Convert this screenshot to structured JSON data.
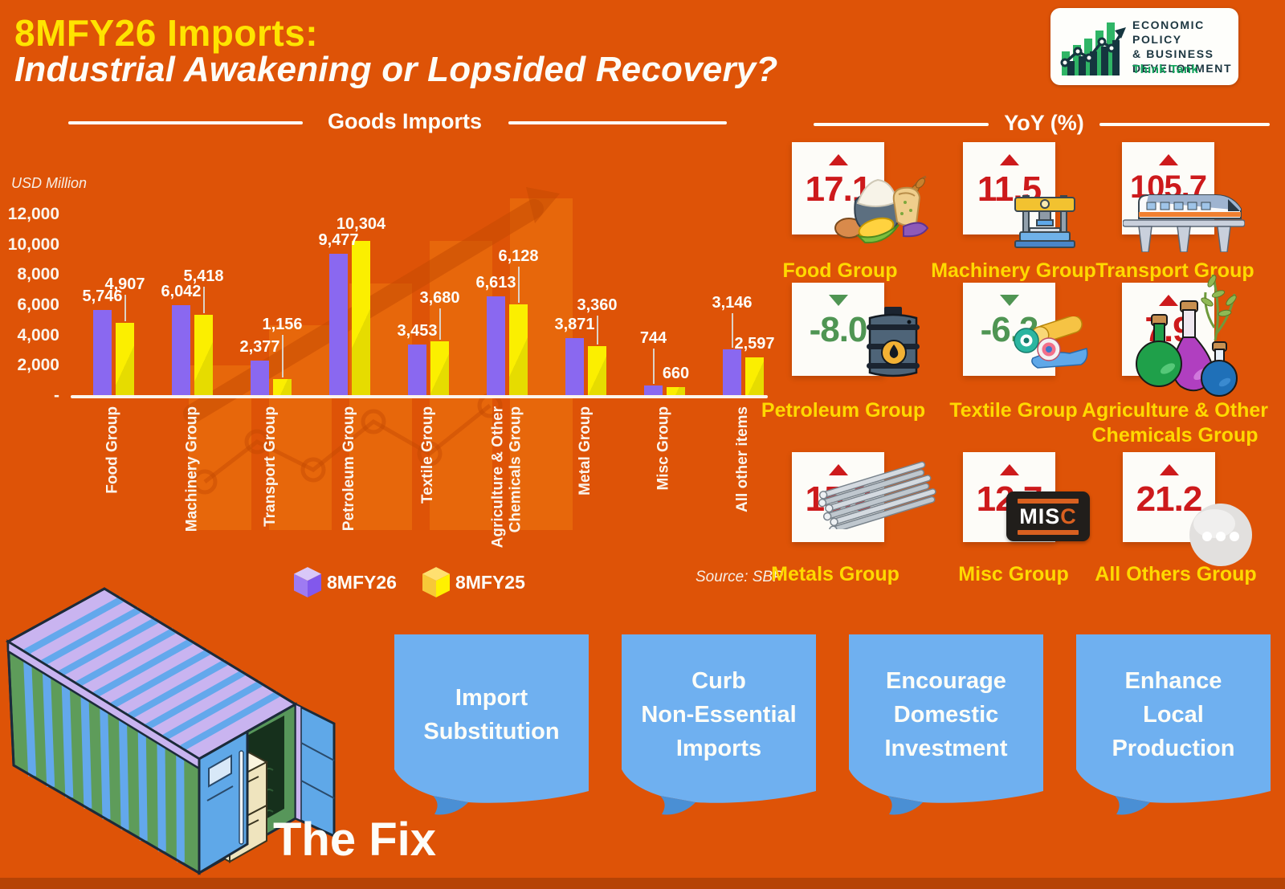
{
  "header": {
    "title_accent": "8MFY26 Imports:",
    "title_main": "Industrial Awakening or Lopsided Recovery?"
  },
  "logo": {
    "line1": "ECONOMIC POLICY",
    "line2": "& BUSINESS",
    "line3": "DEVELOPMENT",
    "tagline": "Think Tank"
  },
  "sections": {
    "chart_title": "Goods Imports",
    "yoy_title": "YoY (%)"
  },
  "chart": {
    "unit_label": "USD Million",
    "source": "Source: SBP",
    "legend": [
      {
        "label": "8MFY26",
        "color": "#8A68F0"
      },
      {
        "label": "8MFY25",
        "color": "#FBEF00"
      }
    ]
  },
  "chart_data": {
    "type": "bar",
    "title": "Goods Imports",
    "ylabel": "USD Million",
    "categories": [
      "Food Group",
      "Machinery Group",
      "Transport Group",
      "Petroleum Group",
      "Textile Group",
      "Agriculture & Other Chemicals Group",
      "Metal Group",
      "Misc Group",
      "All other items"
    ],
    "category_lines": [
      [
        "Food Group"
      ],
      [
        "Machinery Group"
      ],
      [
        "Transport Group"
      ],
      [
        "Petroleum Group"
      ],
      [
        "Textile Group"
      ],
      [
        "Agriculture & Other",
        "Chemicals Group"
      ],
      [
        "Metal Group"
      ],
      [
        "Misc Group"
      ],
      [
        "All other items"
      ]
    ],
    "series": [
      {
        "name": "8MFY26",
        "color": "#8A68F0",
        "values": [
          5746,
          6042,
          2377,
          9477,
          3453,
          6613,
          3871,
          744,
          3146
        ]
      },
      {
        "name": "8MFY25",
        "color": "#FBEF00",
        "values": [
          4907,
          5418,
          1156,
          10304,
          3680,
          6128,
          3360,
          660,
          2597
        ]
      }
    ],
    "ylim": [
      0,
      12000
    ],
    "y_ticks": [
      12000,
      10000,
      8000,
      6000,
      4000,
      2000,
      0
    ],
    "zero_tick_label": "-",
    "grid": false,
    "legend_position": "bottom",
    "source": "SBP"
  },
  "yoy": {
    "cards": [
      {
        "label_lines": [
          "Food Group"
        ],
        "value": "17.1",
        "direction": "up",
        "icon": "food-icon"
      },
      {
        "label_lines": [
          "Machinery Group"
        ],
        "value": "11.5",
        "direction": "up",
        "icon": "machinery-icon"
      },
      {
        "label_lines": [
          "Transport Group"
        ],
        "value": "105.7",
        "direction": "up",
        "icon": "transport-icon"
      },
      {
        "label_lines": [
          "Petroleum Group"
        ],
        "value": "-8.0",
        "direction": "down",
        "icon": "petroleum-icon"
      },
      {
        "label_lines": [
          "Textile Group"
        ],
        "value": "-6.2",
        "direction": "down",
        "icon": "textile-icon"
      },
      {
        "label_lines": [
          "Agriculture & Other",
          "Chemicals Group"
        ],
        "value": "7.9",
        "direction": "up",
        "icon": "chemicals-icon"
      },
      {
        "label_lines": [
          "Metals Group"
        ],
        "value": "15.2",
        "direction": "up",
        "icon": "metals-icon"
      },
      {
        "label_lines": [
          "Misc Group"
        ],
        "value": "12.7",
        "direction": "up",
        "icon": "misc-icon"
      },
      {
        "label_lines": [
          "All Others Group"
        ],
        "value": "21.2",
        "direction": "up",
        "icon": "all-others-icon"
      }
    ],
    "misc_badge_text_white": "MIS",
    "misc_badge_text_orange": "C"
  },
  "fix": {
    "title": "The Fix",
    "notes": [
      "Import Substitution",
      "Curb\nNon-Essential\nImports",
      "Encourage\nDomestic\nInvestment",
      "Enhance\nLocal\nProduction"
    ]
  },
  "colors": {
    "background": "#DE5307",
    "accent_yellow": "#FFE400",
    "label_yellow": "#FFD900",
    "positive_red": "#CD1A1C",
    "negative_green": "#4F9553",
    "note_blue": "#6FB0F0"
  }
}
